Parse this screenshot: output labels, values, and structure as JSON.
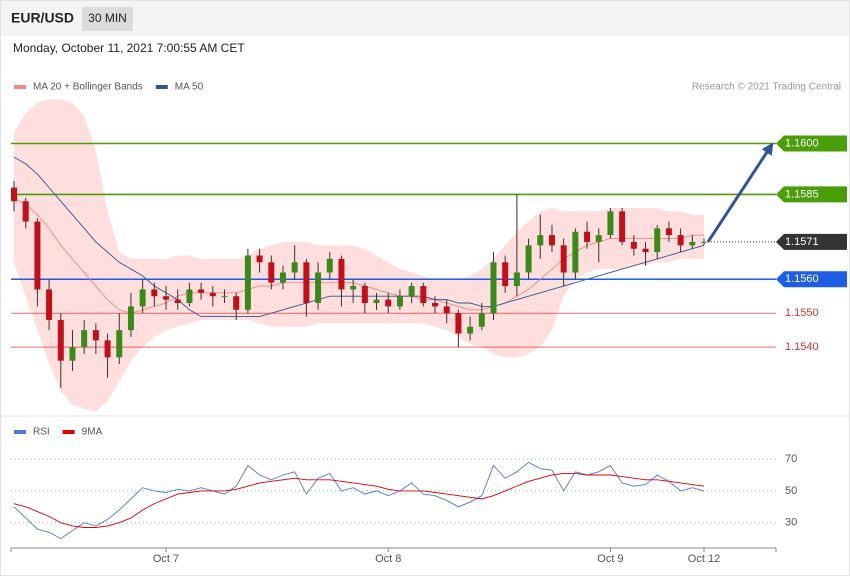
{
  "header": {
    "symbol": "EUR/USD",
    "timeframe": "30 MIN",
    "datetime": "Monday, October 11, 2021 7:00:55 AM CET",
    "credit": "Research © 2021 Trading Central"
  },
  "chart_data": [
    {
      "type": "candlestick",
      "categories": [
        null,
        null,
        null,
        null,
        null,
        null,
        null,
        null,
        null,
        null,
        null,
        null,
        null,
        "Oct 7",
        null,
        null,
        null,
        null,
        null,
        null,
        null,
        null,
        null,
        null,
        null,
        null,
        null,
        null,
        null,
        null,
        null,
        null,
        "Oct 8",
        null,
        null,
        null,
        null,
        null,
        null,
        null,
        null,
        null,
        null,
        null,
        null,
        null,
        null,
        null,
        null,
        null,
        null,
        "Oct 9",
        null,
        null,
        null,
        null,
        null,
        null,
        null,
        "Oct 12"
      ],
      "ohlc": [
        [
          1.1587,
          1.1589,
          1.158,
          1.1583
        ],
        [
          1.1583,
          1.1584,
          1.1575,
          1.1577
        ],
        [
          1.1577,
          1.1578,
          1.1552,
          1.1557
        ],
        [
          1.1557,
          1.156,
          1.1545,
          1.1548
        ],
        [
          1.1548,
          1.155,
          1.1528,
          1.1536
        ],
        [
          1.1536,
          1.1545,
          1.1533,
          1.154
        ],
        [
          1.154,
          1.1548,
          1.1538,
          1.1545
        ],
        [
          1.1545,
          1.1547,
          1.1538,
          1.1542
        ],
        [
          1.1542,
          1.1544,
          1.1531,
          1.1537
        ],
        [
          1.1537,
          1.155,
          1.1535,
          1.1545
        ],
        [
          1.1545,
          1.1556,
          1.1543,
          1.1552
        ],
        [
          1.1552,
          1.156,
          1.155,
          1.1557
        ],
        [
          1.1557,
          1.1559,
          1.1552,
          1.1555
        ],
        [
          1.1555,
          1.1558,
          1.1551,
          1.1554
        ],
        [
          1.1554,
          1.1557,
          1.1551,
          1.1553
        ],
        [
          1.1553,
          1.1559,
          1.1552,
          1.1557
        ],
        [
          1.1557,
          1.1559,
          1.1554,
          1.1556
        ],
        [
          1.1556,
          1.1558,
          1.1552,
          1.1555
        ],
        [
          1.1555,
          1.1557,
          1.1553,
          1.1555
        ],
        [
          1.1555,
          1.1556,
          1.1548,
          1.1551
        ],
        [
          1.1551,
          1.1569,
          1.155,
          1.1567
        ],
        [
          1.1567,
          1.1569,
          1.1562,
          1.1565
        ],
        [
          1.1565,
          1.1567,
          1.1557,
          1.1559
        ],
        [
          1.1559,
          1.1564,
          1.1557,
          1.1562
        ],
        [
          1.1562,
          1.157,
          1.156,
          1.1565
        ],
        [
          1.1565,
          1.1566,
          1.1549,
          1.1553
        ],
        [
          1.1553,
          1.1565,
          1.1551,
          1.1562
        ],
        [
          1.1562,
          1.1568,
          1.156,
          1.1566
        ],
        [
          1.1566,
          1.1567,
          1.1552,
          1.1557
        ],
        [
          1.1557,
          1.156,
          1.1553,
          1.1558
        ],
        [
          1.1558,
          1.1559,
          1.155,
          1.1553
        ],
        [
          1.1553,
          1.1556,
          1.1551,
          1.1554
        ],
        [
          1.1554,
          1.1556,
          1.155,
          1.1552
        ],
        [
          1.1552,
          1.1557,
          1.1551,
          1.1555
        ],
        [
          1.1555,
          1.1559,
          1.1553,
          1.1558
        ],
        [
          1.1558,
          1.1559,
          1.1552,
          1.1553
        ],
        [
          1.1553,
          1.1555,
          1.155,
          1.1552
        ],
        [
          1.1552,
          1.1554,
          1.1547,
          1.155
        ],
        [
          1.155,
          1.1551,
          1.154,
          1.1544
        ],
        [
          1.1544,
          1.1549,
          1.1542,
          1.1546
        ],
        [
          1.1546,
          1.1553,
          1.1545,
          1.155
        ],
        [
          1.155,
          1.1568,
          1.1548,
          1.1565
        ],
        [
          1.1565,
          1.1567,
          1.1556,
          1.1558
        ],
        [
          1.1558,
          1.1585,
          1.1555,
          1.1562
        ],
        [
          1.1562,
          1.1572,
          1.156,
          1.157
        ],
        [
          1.157,
          1.1579,
          1.1566,
          1.1573
        ],
        [
          1.1573,
          1.1576,
          1.1568,
          1.157
        ],
        [
          1.157,
          1.1572,
          1.1558,
          1.1562
        ],
        [
          1.1562,
          1.1575,
          1.156,
          1.1574
        ],
        [
          1.1574,
          1.1577,
          1.1569,
          1.1571
        ],
        [
          1.1571,
          1.1575,
          1.1565,
          1.1573
        ],
        [
          1.1573,
          1.1581,
          1.1572,
          1.158
        ],
        [
          1.158,
          1.1581,
          1.157,
          1.1571
        ],
        [
          1.1571,
          1.1573,
          1.1567,
          1.1569
        ],
        [
          1.1569,
          1.1571,
          1.1564,
          1.1568
        ],
        [
          1.1568,
          1.1576,
          1.1566,
          1.1575
        ],
        [
          1.1575,
          1.1577,
          1.1571,
          1.1573
        ],
        [
          1.1573,
          1.1575,
          1.1568,
          1.157
        ],
        [
          1.157,
          1.1573,
          1.1569,
          1.1571
        ],
        [
          1.1571,
          1.1572,
          1.157,
          1.1571
        ]
      ],
      "up_color": "#3a8a1a",
      "down_color": "#c0101a",
      "series": [
        {
          "name": "MA 20 + Bollinger Bands",
          "color": "#f4877f",
          "band_color": "#ffdede",
          "values": [
            1.1584,
            1.1582,
            1.1579,
            1.1575,
            1.157,
            1.1566,
            1.1562,
            1.1558,
            1.1554,
            1.1551,
            1.155,
            1.1551,
            1.1552,
            1.1553,
            1.1555,
            1.1556,
            1.1556,
            1.1556,
            1.1556,
            1.1556,
            1.1557,
            1.1558,
            1.1558,
            1.1559,
            1.1559,
            1.1559,
            1.1559,
            1.1559,
            1.1559,
            1.1559,
            1.1558,
            1.1557,
            1.1556,
            1.1555,
            1.1555,
            1.1554,
            1.1554,
            1.1553,
            1.1552,
            1.1551,
            1.1551,
            1.1552,
            1.1553,
            1.1555,
            1.1557,
            1.156,
            1.1563,
            1.1566,
            1.1568,
            1.157,
            1.1571,
            1.1572,
            1.1572,
            1.1572,
            1.1572,
            1.1572,
            1.1572,
            1.1572,
            1.1573,
            1.1573
          ],
          "upper": [
            1.1603,
            1.1609,
            1.1612,
            1.1613,
            1.1613,
            1.1612,
            1.1608,
            1.1598,
            1.158,
            1.1568,
            1.1566,
            1.1566,
            1.1566,
            1.1566,
            1.1567,
            1.1567,
            1.1566,
            1.1566,
            1.1566,
            1.1566,
            1.1567,
            1.1569,
            1.157,
            1.1571,
            1.1571,
            1.1571,
            1.157,
            1.157,
            1.157,
            1.157,
            1.1569,
            1.1567,
            1.1565,
            1.1563,
            1.1562,
            1.1561,
            1.156,
            1.156,
            1.156,
            1.1561,
            1.1563,
            1.1566,
            1.157,
            1.1574,
            1.1577,
            1.158,
            1.1581,
            1.158,
            1.158,
            1.158,
            1.158,
            1.1581,
            1.1581,
            1.1581,
            1.1581,
            1.1581,
            1.158,
            1.158,
            1.1579,
            1.1579
          ],
          "lower": [
            1.1565,
            1.1555,
            1.1545,
            1.1535,
            1.1527,
            1.1523,
            1.1522,
            1.1521,
            1.1524,
            1.153,
            1.1536,
            1.154,
            1.1543,
            1.1545,
            1.1546,
            1.1547,
            1.1548,
            1.1548,
            1.1548,
            1.1548,
            1.1548,
            1.1547,
            1.1546,
            1.1546,
            1.1546,
            1.1546,
            1.1547,
            1.1547,
            1.1547,
            1.1547,
            1.1547,
            1.1547,
            1.1547,
            1.1547,
            1.1547,
            1.1547,
            1.1546,
            1.1545,
            1.1543,
            1.1541,
            1.154,
            1.1538,
            1.1537,
            1.1537,
            1.1538,
            1.154,
            1.1545,
            1.1555,
            1.156,
            1.1562,
            1.1563,
            1.1563,
            1.1563,
            1.1564,
            1.1564,
            1.1565,
            1.1565,
            1.1566,
            1.1566,
            1.1566
          ]
        },
        {
          "name": "MA 50",
          "color": "#2f5597",
          "values": [
            1.1596,
            1.1594,
            1.1591,
            1.1587,
            1.1583,
            1.1579,
            1.1575,
            1.1571,
            1.1568,
            1.1565,
            1.1563,
            1.1561,
            1.1558,
            1.1556,
            1.1554,
            1.1551,
            1.1549,
            1.1549,
            1.1549,
            1.1549,
            1.1549,
            1.1549,
            1.155,
            1.1551,
            1.1552,
            1.1553,
            1.1554,
            1.1555,
            1.1555,
            1.1555,
            1.1555,
            1.1555,
            1.1555,
            1.1555,
            1.1555,
            1.1555,
            1.1554,
            1.1554,
            1.1553,
            1.1553,
            1.1552,
            1.1552,
            1.1553,
            1.1554,
            1.1555,
            1.1556,
            1.1557,
            1.1558,
            1.1559,
            1.156,
            1.1561,
            1.1562,
            1.1563,
            1.1564,
            1.1565,
            1.1566,
            1.1567,
            1.1568,
            1.1569,
            1.157
          ]
        }
      ],
      "ylim": [
        1.152,
        1.1614
      ],
      "levels": [
        {
          "value": 1.16,
          "label": "1.1600",
          "color": "#4a9e0a",
          "tag": true
        },
        {
          "value": 1.1585,
          "label": "1.1585",
          "color": "#4a9e0a",
          "tag": true
        },
        {
          "value": 1.1571,
          "label": "1.1571",
          "color": "#333333",
          "tag": true,
          "dotted": true
        },
        {
          "value": 1.156,
          "label": "1.1560",
          "color": "#1e5ee6",
          "tag": true
        },
        {
          "value": 1.155,
          "label": "1.1550",
          "color": "#e03030",
          "tag": false
        },
        {
          "value": 1.154,
          "label": "1.1540",
          "color": "#e03030",
          "tag": false
        }
      ],
      "arrow_color": "#2f5597"
    },
    {
      "type": "line",
      "series": [
        {
          "name": "RSI",
          "color": "#4f78e0",
          "values": [
            40,
            33,
            26,
            24,
            20,
            25,
            30,
            28,
            32,
            38,
            45,
            52,
            50,
            49,
            51,
            50,
            52,
            50,
            48,
            53,
            66,
            60,
            57,
            60,
            62,
            48,
            58,
            61,
            50,
            52,
            48,
            50,
            47,
            50,
            55,
            48,
            47,
            44,
            40,
            43,
            47,
            66,
            58,
            62,
            68,
            64,
            63,
            50,
            62,
            60,
            62,
            66,
            55,
            53,
            54,
            60,
            56,
            50,
            52,
            50
          ]
        },
        {
          "name": "9MA",
          "color": "#e00000",
          "values": [
            42,
            40,
            37,
            34,
            30,
            28,
            27,
            27,
            28,
            30,
            33,
            38,
            42,
            45,
            48,
            49,
            50,
            50,
            50,
            51,
            53,
            55,
            56,
            57,
            58,
            57,
            57,
            57,
            56,
            55,
            54,
            53,
            51,
            50,
            50,
            50,
            49,
            48,
            47,
            46,
            45,
            47,
            50,
            53,
            56,
            58,
            60,
            61,
            61,
            60,
            60,
            60,
            59,
            58,
            57,
            57,
            56,
            55,
            54,
            53
          ]
        }
      ],
      "ylim": [
        16,
        82
      ],
      "yticks": [
        70,
        50,
        30
      ],
      "grid": true
    }
  ]
}
